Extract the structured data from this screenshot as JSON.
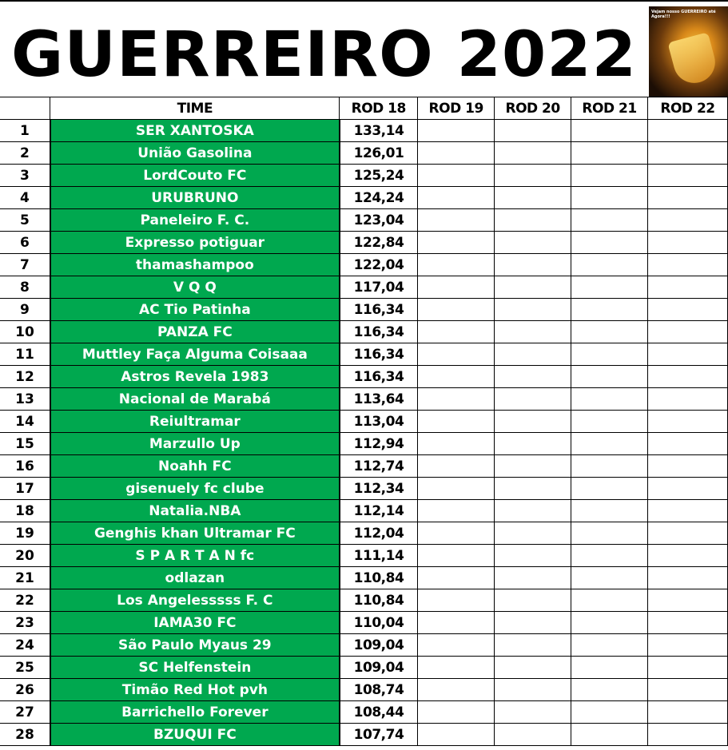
{
  "title": "GUERREIRO 2022",
  "logo_caption": "Vejam nosso GUERREIRO até Agora!!!",
  "colors": {
    "team_fill": "#00a84f",
    "team_text": "#ffffff"
  },
  "headers": [
    "",
    "TIME",
    "ROD 18",
    "ROD 19",
    "ROD 20",
    "ROD 21",
    "ROD 22"
  ],
  "rows": [
    {
      "pos": "1",
      "team": "SER XANTOSKA",
      "rod18": "133,14"
    },
    {
      "pos": "2",
      "team": "União Gasolina",
      "rod18": "126,01"
    },
    {
      "pos": "3",
      "team": "LordCouto FC",
      "rod18": "125,24"
    },
    {
      "pos": "4",
      "team": "URUBRUNO",
      "rod18": "124,24"
    },
    {
      "pos": "5",
      "team": "Paneleiro F. C.",
      "rod18": "123,04"
    },
    {
      "pos": "6",
      "team": "Expresso potiguar",
      "rod18": "122,84"
    },
    {
      "pos": "7",
      "team": "thamashampoo",
      "rod18": "122,04"
    },
    {
      "pos": "8",
      "team": "V Q Q",
      "rod18": "117,04"
    },
    {
      "pos": "9",
      "team": "AC Tio Patinha",
      "rod18": "116,34"
    },
    {
      "pos": "10",
      "team": "PANZA FC",
      "rod18": "116,34"
    },
    {
      "pos": "11",
      "team": "Muttley Faça Alguma Coisaaa",
      "rod18": "116,34"
    },
    {
      "pos": "12",
      "team": "Astros Revela 1983",
      "rod18": "116,34"
    },
    {
      "pos": "13",
      "team": "Nacional de Marabá",
      "rod18": "113,64"
    },
    {
      "pos": "14",
      "team": "Reiultramar",
      "rod18": "113,04"
    },
    {
      "pos": "15",
      "team": "Marzullo Up",
      "rod18": "112,94"
    },
    {
      "pos": "16",
      "team": "Noahh FC",
      "rod18": "112,74"
    },
    {
      "pos": "17",
      "team": "gisenuely fc clube",
      "rod18": "112,34"
    },
    {
      "pos": "18",
      "team": "Natalia.NBA",
      "rod18": "112,14"
    },
    {
      "pos": "19",
      "team": "Genghis khan Ultramar FC",
      "rod18": "112,04"
    },
    {
      "pos": "20",
      "team": "S P A R T A N fc",
      "rod18": "111,14"
    },
    {
      "pos": "21",
      "team": "odlazan",
      "rod18": "110,84"
    },
    {
      "pos": "22",
      "team": "Los Angelesssss F. C",
      "rod18": "110,84"
    },
    {
      "pos": "23",
      "team": "IAMA30 FC",
      "rod18": "110,04"
    },
    {
      "pos": "24",
      "team": "São Paulo Myaus 29",
      "rod18": "109,04"
    },
    {
      "pos": "25",
      "team": "SC Helfenstein",
      "rod18": "109,04"
    },
    {
      "pos": "26",
      "team": "Timão Red Hot pvh",
      "rod18": "108,74"
    },
    {
      "pos": "27",
      "team": "Barrichello Forever",
      "rod18": "108,44"
    },
    {
      "pos": "28",
      "team": "BZUQUI FC",
      "rod18": "107,74"
    }
  ]
}
